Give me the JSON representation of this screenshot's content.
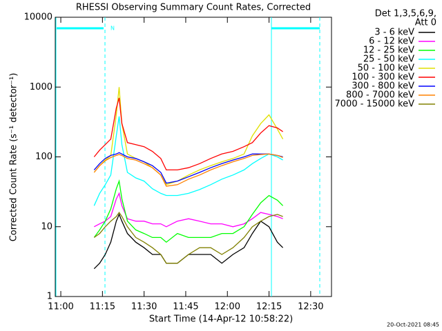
{
  "chart_data": {
    "type": "line",
    "title": "RHESSI Observing Summary Count Rates, Corrected",
    "xlabel": "Start Time (14-Apr-12 10:58:22)",
    "ylabel": "Corrected Count Rate (s⁻¹ detector⁻¹)",
    "legend_header": [
      "Det 1,3,5,6,9,",
      "Att 0"
    ],
    "annotation": "N",
    "timestamp": "20-Oct-2021 08:45",
    "log_y": true,
    "xlim": [
      -2,
      97.5
    ],
    "ylim": [
      1,
      10000
    ],
    "xticks": [
      {
        "value": 0,
        "label": "11:00"
      },
      {
        "value": 15,
        "label": "11:15"
      },
      {
        "value": 30,
        "label": "11:30"
      },
      {
        "value": 45,
        "label": "11:45"
      },
      {
        "value": 60,
        "label": "12:00"
      },
      {
        "value": 75,
        "label": "12:15"
      },
      {
        "value": 90,
        "label": "12:30"
      }
    ],
    "yticks": [
      1,
      10,
      100,
      1000,
      10000
    ],
    "x": [
      12,
      14,
      16,
      18,
      20,
      21,
      22,
      24,
      27,
      30,
      33,
      36,
      38,
      42,
      46,
      50,
      54,
      58,
      62,
      66,
      69,
      72,
      75,
      78,
      80
    ],
    "series": [
      {
        "name": "3 - 6 keV",
        "color": "#000000",
        "values": [
          2.5,
          3,
          4,
          6,
          12,
          15,
          12,
          8,
          6,
          5,
          4,
          4,
          3,
          3,
          4,
          4,
          4,
          3,
          4,
          5,
          8,
          12,
          10,
          6,
          5
        ]
      },
      {
        "name": "6 - 12 keV",
        "color": "#ff00ff",
        "values": [
          10,
          11,
          12,
          14,
          25,
          30,
          20,
          13,
          12,
          12,
          11,
          11,
          10,
          12,
          13,
          12,
          11,
          11,
          10,
          11,
          13,
          16,
          15,
          14,
          13
        ]
      },
      {
        "name": "12 - 25 keV",
        "color": "#00ff00",
        "values": [
          7,
          9,
          12,
          18,
          35,
          45,
          25,
          12,
          9,
          8,
          7,
          7,
          6,
          8,
          7,
          7,
          7,
          8,
          8,
          10,
          15,
          22,
          28,
          24,
          20
        ]
      },
      {
        "name": "25 - 50 keV",
        "color": "#00ffff",
        "values": [
          20,
          30,
          40,
          55,
          200,
          380,
          150,
          60,
          50,
          45,
          35,
          30,
          28,
          28,
          30,
          34,
          40,
          48,
          55,
          65,
          80,
          95,
          110,
          100,
          90
        ]
      },
      {
        "name": "50 - 100 keV",
        "color": "#e0e000",
        "values": [
          60,
          75,
          90,
          105,
          400,
          1000,
          300,
          110,
          95,
          85,
          70,
          55,
          40,
          45,
          55,
          65,
          75,
          85,
          95,
          110,
          200,
          300,
          400,
          250,
          180
        ]
      },
      {
        "name": "100 - 300 keV",
        "color": "#ff0000",
        "values": [
          100,
          125,
          150,
          180,
          500,
          700,
          300,
          160,
          150,
          140,
          120,
          95,
          65,
          65,
          70,
          80,
          95,
          110,
          120,
          140,
          160,
          220,
          280,
          260,
          230
        ]
      },
      {
        "name": "300 - 800 keV",
        "color": "#0000ff",
        "values": [
          65,
          80,
          95,
          105,
          110,
          115,
          110,
          100,
          95,
          85,
          75,
          60,
          42,
          45,
          52,
          60,
          70,
          80,
          90,
          100,
          110,
          110,
          110,
          105,
          100
        ]
      },
      {
        "name": "800 - 7000 keV",
        "color": "#ff8000",
        "values": [
          60,
          75,
          88,
          98,
          105,
          108,
          105,
          95,
          90,
          80,
          70,
          55,
          38,
          40,
          48,
          55,
          65,
          75,
          85,
          95,
          105,
          108,
          110,
          105,
          98
        ]
      },
      {
        "name": "7000 - 15000 keV",
        "color": "#808000",
        "values": [
          7,
          8,
          10,
          12,
          14,
          16,
          14,
          10,
          7,
          6,
          5,
          4,
          3,
          3,
          4,
          5,
          5,
          4,
          5,
          7,
          10,
          12,
          14,
          15,
          14
        ]
      }
    ]
  }
}
